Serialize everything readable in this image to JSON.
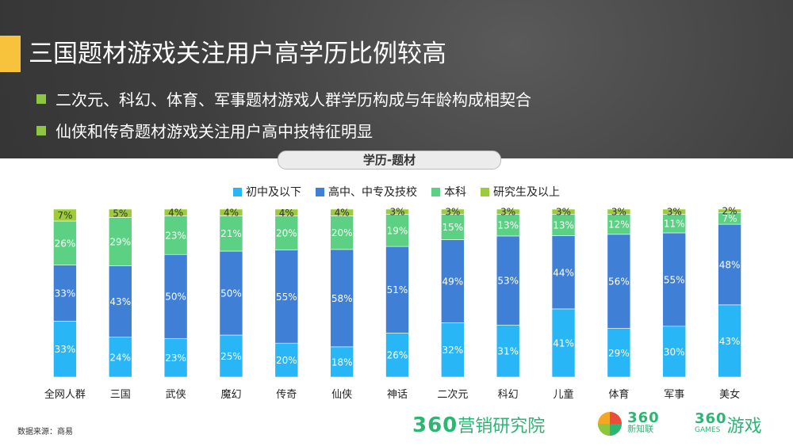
{
  "title": "三国题材游戏关注用户高学历比例较高",
  "bullets": [
    "二次元、科幻、体育、军事题材游戏人群学历构成与年龄构成相契合",
    "仙侠和传奇题材游戏关注用户高中技特征明显"
  ],
  "chart_pill": "学历-题材",
  "source": "数据来源：商易",
  "logos": {
    "marketing_num": "360",
    "marketing_text": "营销研究院",
    "xinzhilian_num": "360",
    "xinzhilian_text": "新知联",
    "games_num": "360",
    "games_text": "游戏",
    "games_sub": "GAMES"
  },
  "colors": {
    "accent": "#f7c33c",
    "bullet": "#8dc63f",
    "s1": "#29b6f6",
    "s2": "#3f7fd6",
    "s3": "#5cd184",
    "s4": "#9ccc3c"
  },
  "chart_data": {
    "type": "bar",
    "stacked": true,
    "normalized": true,
    "categories": [
      "全网人群",
      "三国",
      "武侠",
      "魔幻",
      "传奇",
      "仙侠",
      "神话",
      "二次元",
      "科幻",
      "儿童",
      "体育",
      "军事",
      "美女"
    ],
    "series": [
      {
        "name": "初中及以下",
        "values": [
          33,
          24,
          23,
          25,
          20,
          18,
          26,
          32,
          31,
          41,
          29,
          30,
          43
        ]
      },
      {
        "name": "高中、中专及技校",
        "values": [
          33,
          43,
          50,
          50,
          55,
          58,
          51,
          49,
          53,
          44,
          56,
          55,
          48
        ]
      },
      {
        "name": "本科",
        "values": [
          26,
          29,
          23,
          21,
          20,
          20,
          19,
          15,
          13,
          13,
          12,
          11,
          7
        ]
      },
      {
        "name": "研究生及以上",
        "values": [
          7,
          5,
          4,
          4,
          4,
          4,
          3,
          3,
          3,
          3,
          3,
          3,
          2
        ]
      }
    ],
    "legend_position": "top-center",
    "grid": false
  }
}
